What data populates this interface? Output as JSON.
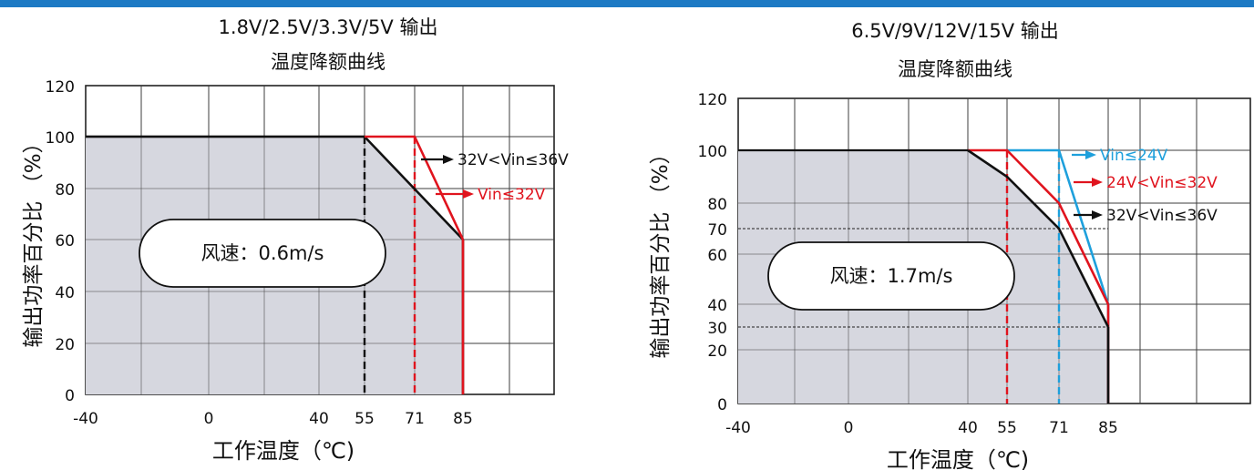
{
  "chart_data": [
    {
      "type": "line",
      "title": "1.8V/2.5V/3.3V/5V 输出",
      "subtitle": "温度降额曲线",
      "xlabel": "工作温度（℃)",
      "ylabel": "输出功率百分比 （%）",
      "x_ticks": [
        -40,
        0,
        40,
        55,
        71,
        85
      ],
      "y_ticks": [
        0,
        20,
        40,
        60,
        80,
        100,
        120
      ],
      "xlim": [
        -40,
        85
      ],
      "ylim": [
        0,
        120
      ],
      "grid": true,
      "note": "风速：0.6m/s",
      "series": [
        {
          "name": "32V<Vin≤36V",
          "color": "#111111",
          "x": [
            -40,
            55,
            85
          ],
          "y": [
            100,
            100,
            60
          ]
        },
        {
          "name": "Vin≤32V",
          "color": "#e0141e",
          "x": [
            55,
            71,
            85
          ],
          "y": [
            100,
            100,
            60
          ]
        }
      ],
      "vlines": [
        {
          "x": 55,
          "color": "#111111"
        },
        {
          "x": 71,
          "color": "#e0141e"
        }
      ]
    },
    {
      "type": "line",
      "title": "6.5V/9V/12V/15V 输出",
      "subtitle": "温度降额曲线",
      "xlabel": "工作温度（℃)",
      "ylabel": "输出功率百分比 （%）",
      "x_ticks": [
        -40,
        0,
        40,
        55,
        71,
        85
      ],
      "y_ticks": [
        0,
        20,
        30,
        40,
        60,
        70,
        80,
        100,
        120
      ],
      "xlim": [
        -40,
        85
      ],
      "ylim": [
        0,
        120
      ],
      "grid": true,
      "note": "风速：1.7m/s",
      "hlines": [
        70,
        30
      ],
      "series": [
        {
          "name": "Vin≤24V",
          "color": "#1ea0dc",
          "x": [
            55,
            71,
            85
          ],
          "y": [
            100,
            100,
            40
          ]
        },
        {
          "name": "24V<Vin≤32V",
          "color": "#e0141e",
          "x": [
            40,
            55,
            71,
            85
          ],
          "y": [
            100,
            100,
            80,
            40
          ]
        },
        {
          "name": "32V<Vin≤36V",
          "color": "#111111",
          "x": [
            40,
            55,
            71,
            85
          ],
          "y": [
            100,
            90,
            70,
            30
          ]
        }
      ],
      "vlines": [
        {
          "x": 55,
          "color": "#e0141e"
        },
        {
          "x": 71,
          "color": "#1ea0dc"
        }
      ]
    }
  ]
}
